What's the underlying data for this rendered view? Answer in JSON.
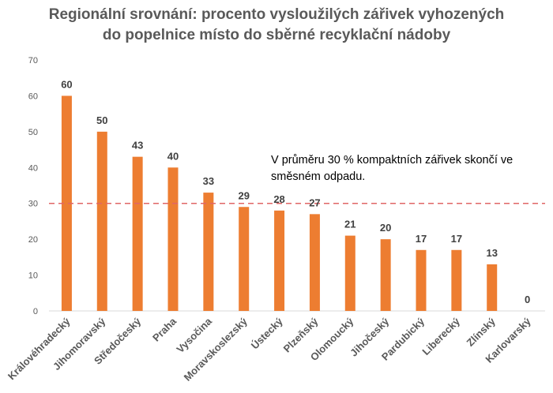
{
  "chart_data": {
    "type": "bar",
    "title_lines": [
      "Regionální srovnání: procento vysloužilých zářivek vyhozených",
      "do popelnice místo do sběrné recyklační nádoby"
    ],
    "categories": [
      "Královéhradecký",
      "Jihomoravský",
      "Středočeský",
      "Praha",
      "Vysočina",
      "Moravskoslezský",
      "Ústecký",
      "Plzeňský",
      "Olomoucký",
      "Jihočeský",
      "Pardubický",
      "Liberecký",
      "Zlínský",
      "Karlovarský"
    ],
    "values": [
      60,
      50,
      43,
      40,
      33,
      29,
      28,
      27,
      21,
      20,
      17,
      17,
      13,
      0
    ],
    "value_labels": [
      "60",
      "50",
      "43",
      "40",
      "33",
      "29",
      "28",
      "27",
      "21",
      "20",
      "17",
      "17",
      "13",
      "0"
    ],
    "y_ticks": [
      0,
      10,
      20,
      30,
      40,
      50,
      60,
      70
    ],
    "y_tick_labels": [
      "0",
      "10",
      "20",
      "30",
      "40",
      "50",
      "60",
      "70"
    ],
    "ylim": [
      0,
      70
    ],
    "xlabel": "",
    "ylabel": "",
    "grid": false,
    "legend": "none",
    "reference_line": {
      "value": 30,
      "style": "dashed"
    },
    "annotation_lines": [
      "V průměru 30 % kompaktních zářivek skončí ve",
      "směsném odpadu."
    ],
    "colors": {
      "bar": "#ED7D31",
      "reference_line": "#E06666",
      "title": "#595959",
      "axis_text": "#595959"
    }
  }
}
